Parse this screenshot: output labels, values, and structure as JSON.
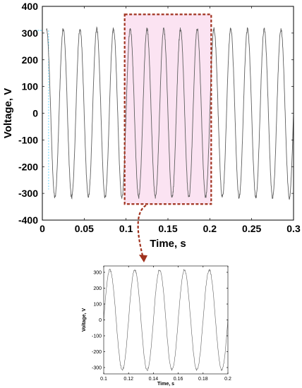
{
  "chart_data": [
    {
      "type": "line",
      "xlabel": "Time, s",
      "ylabel": "Voltage, V",
      "xlim": [
        0,
        0.3
      ],
      "ylim": [
        -400,
        400
      ],
      "xticks": [
        "0",
        "0.05",
        "0.1",
        "0.15",
        "0.2",
        "0.25",
        "0.3"
      ],
      "yticks": [
        "400",
        "300",
        "200",
        "100",
        "0",
        "-100",
        "-200",
        "-300",
        "-400"
      ],
      "grid": false,
      "series": [
        {
          "amplitude": 315,
          "frequency_hz": 50,
          "t_start": 0.005,
          "t_end": 0.3,
          "color": "#606060"
        }
      ],
      "highlight_region": {
        "x": [
          0.1,
          0.2
        ],
        "y": [
          -340,
          370
        ],
        "border_color": "#a0321e",
        "fill_color": "#fbe3f2"
      },
      "reference_level": {
        "y": 310,
        "color": "#4ad0ff"
      }
    },
    {
      "type": "line",
      "xlabel": "Time, s",
      "ylabel": "Voltage, V",
      "xlim": [
        0.1,
        0.2
      ],
      "ylim": [
        -340,
        340
      ],
      "xticks": [
        "0.1",
        "0.12",
        "0.14",
        "0.16",
        "0.18",
        "0.2"
      ],
      "yticks": [
        "300",
        "200",
        "100",
        "0",
        "-100",
        "-200",
        "-300"
      ],
      "grid": false,
      "series": [
        {
          "amplitude": 315,
          "frequency_hz": 50,
          "t_start": 0.1,
          "t_end": 0.2,
          "color": "#606060"
        }
      ]
    }
  ],
  "arrow_color": "#a0321e"
}
